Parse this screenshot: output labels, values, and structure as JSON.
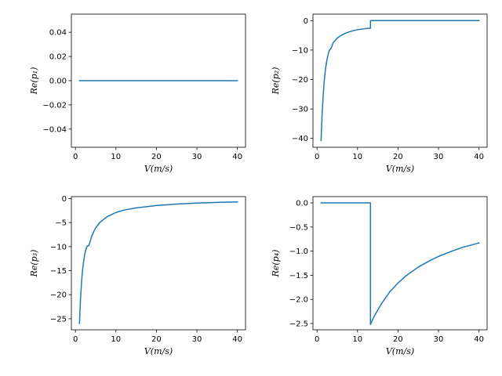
{
  "chart_data": [
    {
      "type": "line",
      "title": "",
      "xlabel": "V(m/s)",
      "ylabel": "Re(p₁)",
      "xlim": [
        -1.0,
        42.0
      ],
      "ylim": [
        -0.055,
        0.055
      ],
      "xticks": [
        0,
        10,
        20,
        30,
        40
      ],
      "xtick_labels": [
        "0",
        "10",
        "20",
        "30",
        "40"
      ],
      "yticks": [
        -0.04,
        -0.02,
        0.0,
        0.02,
        0.04
      ],
      "ytick_labels": [
        "−0.04",
        "−0.02",
        "0.00",
        "0.02",
        "0.04"
      ],
      "grid": false,
      "color": "#1f77b4",
      "series": [
        {
          "x": [
            1,
            40
          ],
          "y": [
            0,
            0
          ]
        }
      ]
    },
    {
      "type": "line",
      "title": "",
      "xlabel": "V(m/s)",
      "ylabel": "Re(p₂)",
      "xlim": [
        -1.0,
        42.0
      ],
      "ylim": [
        -43.0,
        2.2
      ],
      "xticks": [
        0,
        10,
        20,
        30,
        40
      ],
      "xtick_labels": [
        "0",
        "10",
        "20",
        "30",
        "40"
      ],
      "yticks": [
        -40,
        -30,
        -20,
        -10,
        0
      ],
      "ytick_labels": [
        "−40",
        "−30",
        "−20",
        "−10",
        "0"
      ],
      "grid": false,
      "color": "#1f77b4",
      "series": [
        {
          "x": [
            1.0,
            1.25,
            1.5,
            1.75,
            2.0,
            2.25,
            2.5,
            2.75,
            3.0,
            3.5,
            4.0,
            5.0,
            6.0,
            7.0,
            8.0,
            9.0,
            10.0,
            11.0,
            12.0,
            13.2,
            13.2,
            13.4,
            20.0,
            30.0,
            40.0
          ],
          "y": [
            -40.7,
            -32.0,
            -26.0,
            -21.0,
            -17.5,
            -15.0,
            -13.0,
            -11.5,
            -10.2,
            -9.3,
            -7.5,
            -5.9,
            -5.0,
            -4.3,
            -3.8,
            -3.4,
            -3.1,
            -2.9,
            -2.7,
            -2.6,
            0.0,
            0.0,
            0.0,
            0.0,
            0.0
          ]
        }
      ]
    },
    {
      "type": "line",
      "title": "",
      "xlabel": "V(m/s)",
      "ylabel": "Re(p₃)",
      "xlim": [
        -1.0,
        42.0
      ],
      "ylim": [
        -27.3,
        0.4
      ],
      "xticks": [
        0,
        10,
        20,
        30,
        40
      ],
      "xtick_labels": [
        "0",
        "10",
        "20",
        "30",
        "40"
      ],
      "yticks": [
        -25,
        -20,
        -15,
        -10,
        -5,
        0
      ],
      "ytick_labels": [
        "−25",
        "−20",
        "−15",
        "−10",
        "−5",
        "0"
      ],
      "grid": false,
      "color": "#1f77b4",
      "series": [
        {
          "x": [
            1.0,
            1.25,
            1.5,
            1.75,
            2.0,
            2.25,
            2.5,
            2.75,
            3.0,
            3.25,
            3.5,
            4.0,
            4.5,
            5.0,
            6.0,
            7.0,
            8.0,
            10.0,
            12.0,
            15.0,
            20.0,
            25.0,
            30.0,
            35.0,
            40.0
          ],
          "y": [
            -26.0,
            -21.0,
            -17.5,
            -15.0,
            -13.2,
            -11.8,
            -10.8,
            -10.2,
            -9.8,
            -9.8,
            -9.3,
            -7.9,
            -6.9,
            -6.1,
            -5.0,
            -4.3,
            -3.7,
            -2.9,
            -2.4,
            -1.95,
            -1.45,
            -1.15,
            -0.95,
            -0.8,
            -0.7
          ]
        }
      ]
    },
    {
      "type": "line",
      "title": "",
      "xlabel": "V(m/s)",
      "ylabel": "Re(p₄)",
      "xlim": [
        -1.0,
        42.0
      ],
      "ylim": [
        -2.63,
        0.13
      ],
      "xticks": [
        0,
        10,
        20,
        30,
        40
      ],
      "xtick_labels": [
        "0",
        "10",
        "20",
        "30",
        "40"
      ],
      "yticks": [
        -2.5,
        -2.0,
        -1.5,
        -1.0,
        -0.5,
        0.0
      ],
      "ytick_labels": [
        "−2.5",
        "−2.0",
        "−1.5",
        "−1.0",
        "−0.5",
        "0.0"
      ],
      "grid": false,
      "color": "#1f77b4",
      "series": [
        {
          "x": [
            1.0,
            13.2,
            13.2,
            14.0,
            15.0,
            16.0,
            18.0,
            20.0,
            22.0,
            25.0,
            28.0,
            30.0,
            33.0,
            36.0,
            40.0
          ],
          "y": [
            0.0,
            0.0,
            -2.52,
            -2.37,
            -2.22,
            -2.08,
            -1.84,
            -1.66,
            -1.51,
            -1.33,
            -1.19,
            -1.11,
            -1.01,
            -0.92,
            -0.83
          ]
        }
      ]
    }
  ]
}
